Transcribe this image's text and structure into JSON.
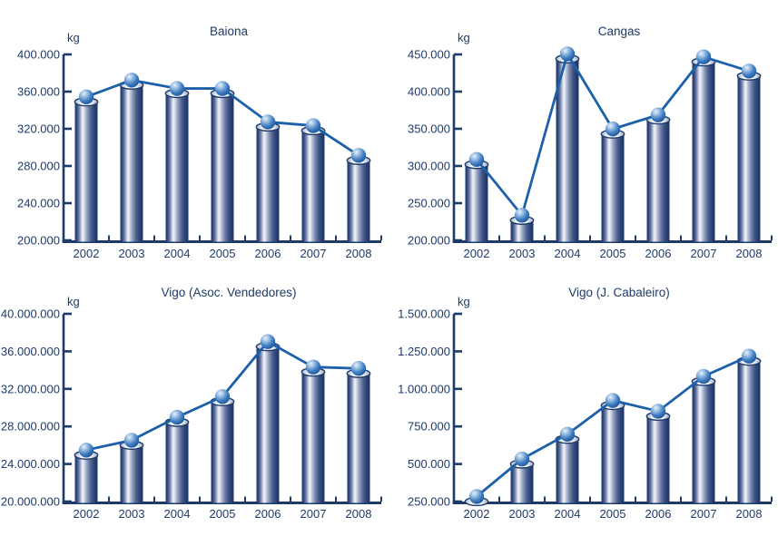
{
  "page": {
    "background": "#FFFFFF",
    "unit_label": "kg"
  },
  "colors": {
    "navy_text_axis": "#1E3A6B",
    "line_blue": "#1C60AA",
    "bar_edge_dark": "#1C3768",
    "bar_highlight": "#F4F6FA",
    "bar_top_face": "#FFFFFF",
    "marker_highlight": "#E8F1FA",
    "marker_mid": "#3F7CC0",
    "marker_dark": "#11498D"
  },
  "chart_data": [
    {
      "id": "baiona",
      "type": "bar",
      "overlay_line": true,
      "title": "Baiona",
      "unit_label": "kg",
      "xlabel": "",
      "ylabel": "kg",
      "grid": false,
      "legend": false,
      "categories": [
        "2002",
        "2003",
        "2004",
        "2005",
        "2006",
        "2007",
        "2008"
      ],
      "values": [
        349000,
        367000,
        358000,
        358000,
        322000,
        318000,
        286000
      ],
      "ylim": [
        200000,
        400000
      ],
      "ystep": 40000,
      "ytick_labels": [
        "400.000",
        "360.000",
        "320.000",
        "280.000",
        "240.000",
        "200.000"
      ]
    },
    {
      "id": "cangas",
      "type": "bar",
      "overlay_line": true,
      "title": "Cangas",
      "unit_label": "kg",
      "xlabel": "",
      "ylabel": "kg",
      "grid": false,
      "legend": false,
      "categories": [
        "2002",
        "2003",
        "2004",
        "2005",
        "2006",
        "2007",
        "2008"
      ],
      "values": [
        302000,
        227000,
        444000,
        343000,
        362000,
        440000,
        421000
      ],
      "ylim": [
        200000,
        450000
      ],
      "ystep": 50000,
      "ytick_labels": [
        "450.000",
        "400.000",
        "350.000",
        "300.000",
        "250.000",
        "200.000"
      ]
    },
    {
      "id": "vigo-asoc-vendedores",
      "type": "bar",
      "overlay_line": true,
      "title": "Vigo (Asoc. Vendedores)",
      "unit_label": "kg",
      "xlabel": "",
      "ylabel": "kg",
      "grid": false,
      "legend": false,
      "categories": [
        "2002",
        "2003",
        "2004",
        "2005",
        "2006",
        "2007",
        "2008"
      ],
      "values": [
        24950000,
        26000000,
        28450000,
        30650000,
        36500000,
        33800000,
        33650000
      ],
      "ylim": [
        20000000,
        40000000
      ],
      "ystep": 4000000,
      "ytick_labels": [
        "40.000.000",
        "36.000.000",
        "32.000.000",
        "28.000.000",
        "24.000.000",
        "20.000.000"
      ]
    },
    {
      "id": "vigo-j-cabaleiro",
      "type": "bar",
      "overlay_line": true,
      "title": "Vigo (J. Cabaleiro)",
      "unit_label": "kg",
      "xlabel": "",
      "ylabel": "kg",
      "grid": false,
      "legend": false,
      "categories": [
        "2002",
        "2003",
        "2004",
        "2005",
        "2006",
        "2007",
        "2008"
      ],
      "values": [
        250000,
        500000,
        665000,
        890000,
        818000,
        1050000,
        1185000
      ],
      "ylim": [
        250000,
        1500000
      ],
      "ystep": 250000,
      "ytick_labels": [
        "1.500.000",
        "1.250.000",
        "1.000.000",
        "750.000",
        "500.000",
        "250.000"
      ]
    }
  ]
}
